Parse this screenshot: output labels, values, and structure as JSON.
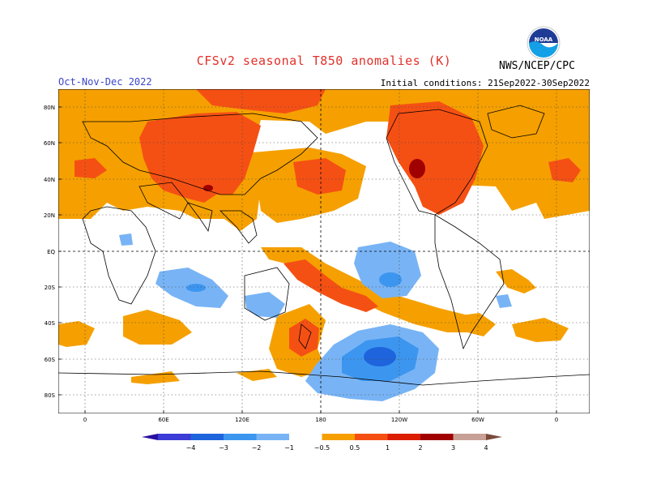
{
  "header": {
    "title": "CFSv2 seasonal T850 anomalies (K)",
    "season": "Oct-Nov-Dec 2022",
    "initial_conditions": "Initial conditions: 21Sep2022-30Sep2022",
    "agency": "NWS/NCEP/CPC",
    "logo_text": "NOAA"
  },
  "map": {
    "projection": "cylindrical equidistant",
    "lat_range": [
      -90,
      90
    ],
    "lon_center": 180,
    "lat_labels": [
      "80N",
      "60N",
      "40N",
      "20N",
      "EQ",
      "20S",
      "40S",
      "60S",
      "80S"
    ],
    "lon_labels": [
      "0",
      "60E",
      "120E",
      "180",
      "120W",
      "60W",
      "0"
    ],
    "grid": "dotted, every 20° latitude and 60° longitude"
  },
  "colorbar": {
    "ticks": [
      "−4",
      "−3",
      "−2",
      "−1",
      "−0.5",
      "0.5",
      "1",
      "2",
      "3",
      "4"
    ],
    "colors": [
      "#2a10a0",
      "#3c3cd6",
      "#1e64dc",
      "#3c96f0",
      "#78b4f5",
      "#ffffff",
      "#f5a000",
      "#f55014",
      "#dc1e00",
      "#a00000",
      "#c8a096",
      "#7a4a3a"
    ],
    "color_neutral": "#ffffff"
  }
}
